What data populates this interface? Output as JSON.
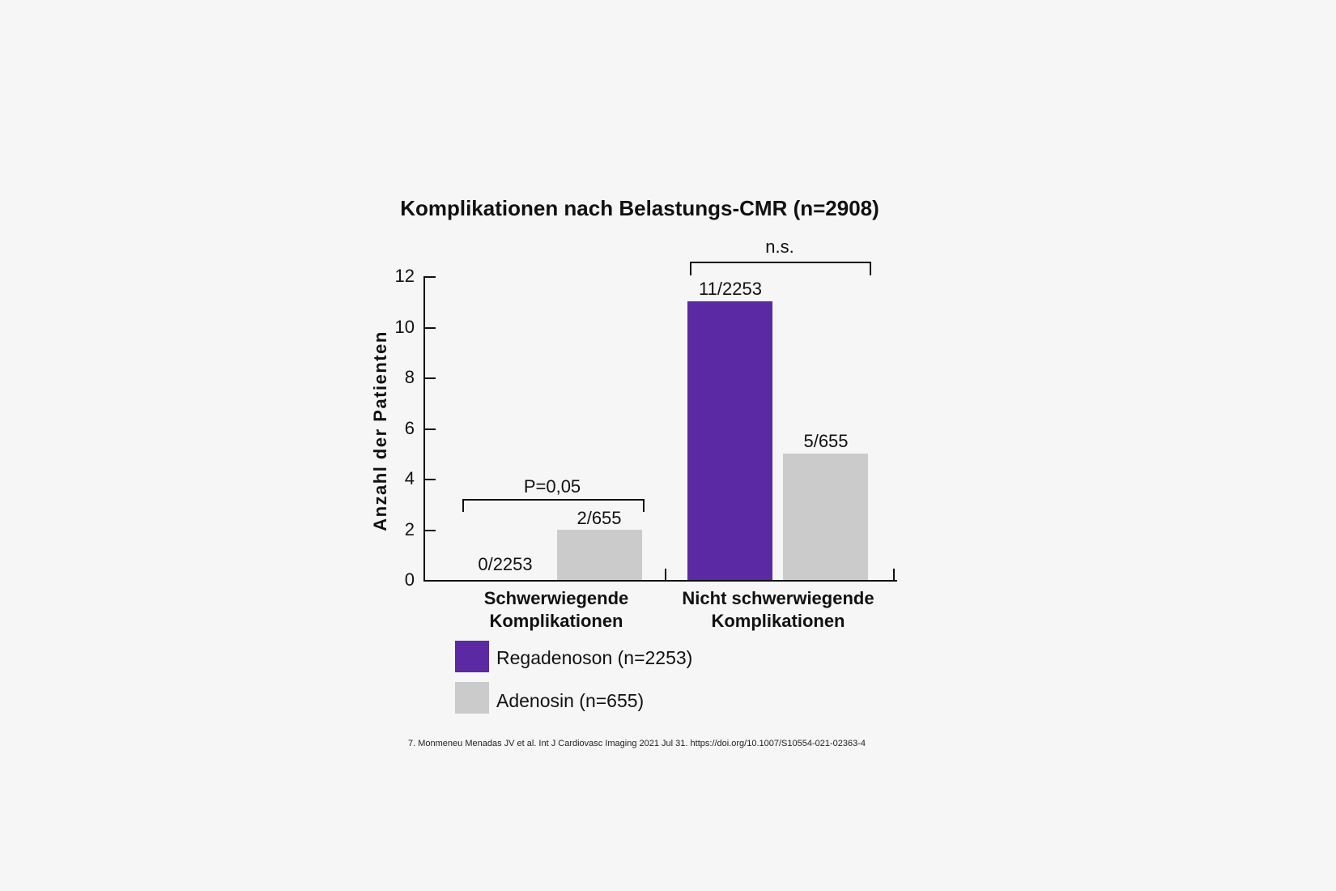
{
  "colors": {
    "background": "#f6f6f6",
    "regadenoson_purple": "#5a29a3",
    "adenosin_gray": "#cbcbcb",
    "axis_text": "#111111"
  },
  "chart_data": {
    "type": "bar",
    "title": "Komplikationen nach Belastungs-CMR (n=2908)",
    "xlabel": "",
    "ylabel": "Anzahl der Patienten",
    "ylim": [
      0,
      12
    ],
    "yticks": [
      0,
      2,
      4,
      6,
      8,
      10,
      12
    ],
    "ytick_labels": [
      "0",
      "2",
      "4",
      "6",
      "8",
      "10",
      "12"
    ],
    "grid": false,
    "legend_position": "bottom-left",
    "categories": [
      "Schwerwiegende Komplikationen",
      "Nicht schwerwiegende Komplikationen"
    ],
    "categories_lines": [
      [
        "Schwerwiegende",
        "Komplikationen"
      ],
      [
        "Nicht schwerwiegende",
        "Komplikationen"
      ]
    ],
    "series": [
      {
        "name": "Regadenoson (n=2253)",
        "color": "#5a29a3",
        "values": [
          0,
          11
        ],
        "bar_labels": [
          "0/2253",
          "11/2253"
        ]
      },
      {
        "name": "Adenosin (n=655)",
        "color": "#cbcbcb",
        "values": [
          2,
          5
        ],
        "bar_labels": [
          "2/655",
          "5/655"
        ]
      }
    ],
    "significance": [
      {
        "group": "Schwerwiegende Komplikationen",
        "label": "P=0,05"
      },
      {
        "group": "Nicht schwerwiegende Komplikationen",
        "label": "n.s."
      }
    ]
  },
  "footnote": "7. Monmeneu Menadas JV et al. Int J Cardiovasc Imaging 2021 Jul 31. https://doi.org/10.1007/S10554-021-02363-4"
}
